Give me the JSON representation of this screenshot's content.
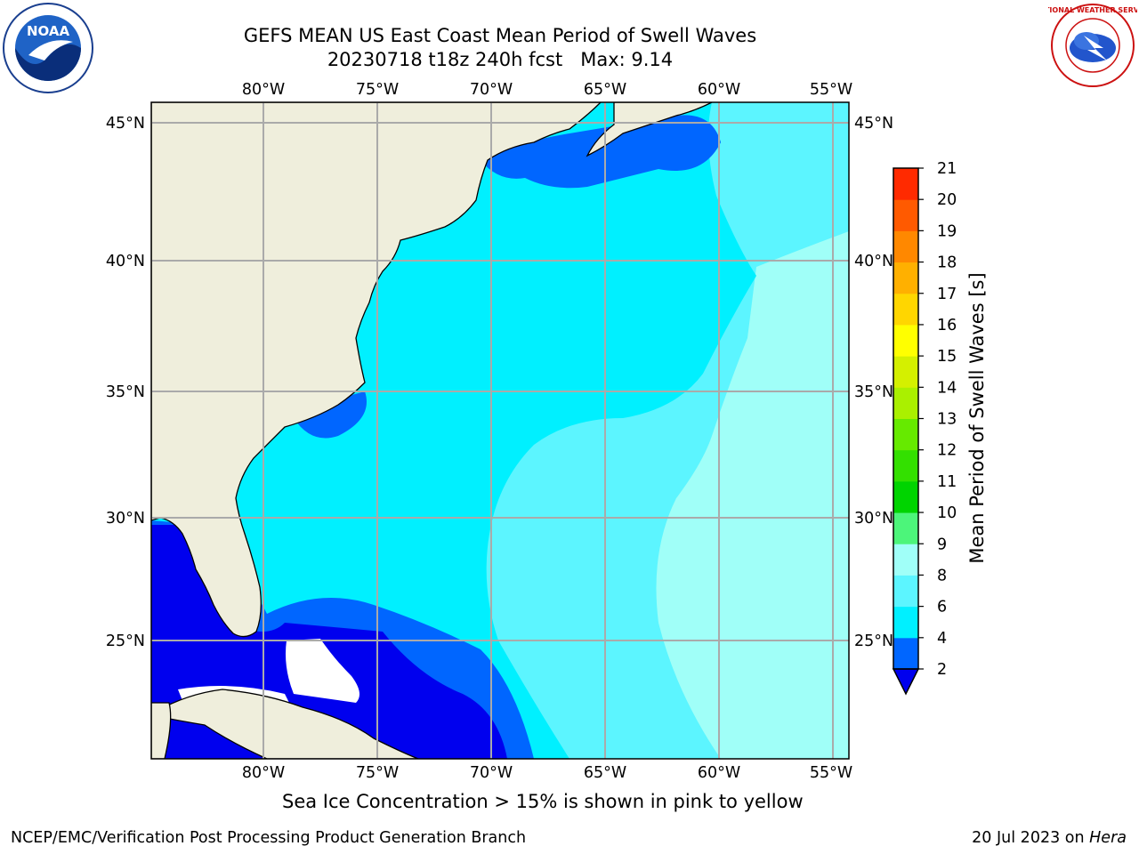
{
  "title_line1": "GEFS MEAN US East Coast Mean Period of Swell Waves",
  "title_line2": "20230718 t18z 240h fcst   Max: 9.14",
  "map": {
    "lon_ticks_top": [
      "80°W",
      "75°W",
      "70°W",
      "65°W",
      "60°W",
      "55°W"
    ],
    "lon_ticks_bottom": [
      "80°W",
      "75°W",
      "70°W",
      "65°W",
      "60°W",
      "55°W"
    ],
    "lat_ticks_left": [
      "45°N",
      "40°N",
      "35°N",
      "30°N",
      "25°N"
    ],
    "lat_ticks_right": [
      "45°N",
      "40°N",
      "35°N",
      "30°N",
      "25°N"
    ],
    "lon_range": [
      -85,
      -54.2
    ],
    "lat_range": [
      20.3,
      46
    ],
    "gridlines": true,
    "land_color": "#efeedc",
    "ocean_colors": {
      "band_2_4": "#0066ff",
      "band_4_6": "#00f0ff",
      "band_6_8": "#5cf5ff",
      "band_8_9": "#a0fff8",
      "below_2": "#0000ee"
    }
  },
  "colorbar": {
    "label": "Mean Period of Swell Waves [s]",
    "ticks": [
      "2",
      "4",
      "6",
      "8",
      "9",
      "10",
      "11",
      "12",
      "13",
      "14",
      "15",
      "16",
      "17",
      "18",
      "19",
      "20",
      "21"
    ],
    "colors": [
      "#0066ff",
      "#00f0ff",
      "#5cf5ff",
      "#a0fff8",
      "#4cf57a",
      "#00d400",
      "#33e000",
      "#66ea00",
      "#aaf000",
      "#d4f000",
      "#ffff00",
      "#ffd600",
      "#ffb000",
      "#ff8800",
      "#ff5a00",
      "#ff2a00"
    ],
    "extend_below_color": "#0000ee"
  },
  "note": "Sea Ice Concentration > 15% is shown in pink to yellow",
  "footer_left": "NCEP/EMC/Verification Post Processing Product Generation Branch",
  "footer_right_prefix": "20 Jul 2023 on ",
  "footer_right_machine": "Hera",
  "logos": {
    "noaa_text": "NOAA",
    "nws_text": "NATIONAL WEATHER SERVICE"
  }
}
